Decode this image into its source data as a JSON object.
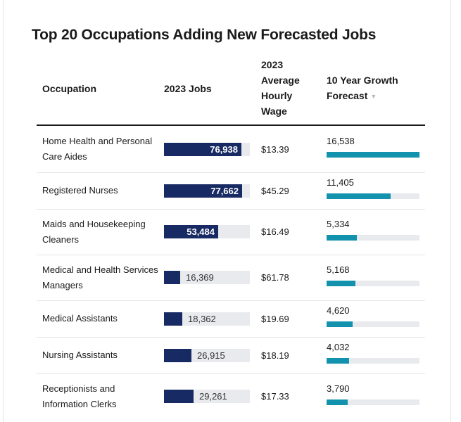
{
  "chart_data": {
    "type": "table",
    "title": "Top 20 Occupations Adding New Forecasted Jobs",
    "columns": {
      "occupation": "Occupation",
      "jobs": "2023 Jobs",
      "wage": "2023 Average Hourly Wage",
      "growth": "10 Year Growth Forecast"
    },
    "sort": {
      "column": "growth",
      "direction": "descending",
      "icon": "sort-down-icon"
    },
    "jobs_bar_max": 85000,
    "growth_bar_max": 16538,
    "colors": {
      "jobs_bar": "#182a63",
      "growth_bar": "#1392ad",
      "track": "#e9eaed"
    },
    "rows": [
      {
        "occupation": "Home Health and Personal Care Aides",
        "jobs": 76938,
        "jobs_label": "76,938",
        "wage": "$13.39",
        "growth": 16538,
        "growth_label": "16,538"
      },
      {
        "occupation": "Registered Nurses",
        "jobs": 77662,
        "jobs_label": "77,662",
        "wage": "$45.29",
        "growth": 11405,
        "growth_label": "11,405"
      },
      {
        "occupation": "Maids and Housekeeping Cleaners",
        "jobs": 53484,
        "jobs_label": "53,484",
        "wage": "$16.49",
        "growth": 5334,
        "growth_label": "5,334"
      },
      {
        "occupation": "Medical and Health Services Managers",
        "jobs": 16369,
        "jobs_label": "16,369",
        "wage": "$61.78",
        "growth": 5168,
        "growth_label": "5,168"
      },
      {
        "occupation": "Medical Assistants",
        "jobs": 18362,
        "jobs_label": "18,362",
        "wage": "$19.69",
        "growth": 4620,
        "growth_label": "4,620"
      },
      {
        "occupation": "Nursing Assistants",
        "jobs": 26915,
        "jobs_label": "26,915",
        "wage": "$18.19",
        "growth": 4032,
        "growth_label": "4,032"
      },
      {
        "occupation": "Receptionists and Information Clerks",
        "jobs": 29261,
        "jobs_label": "29,261",
        "wage": "$17.33",
        "growth": 3790,
        "growth_label": "3,790"
      }
    ]
  }
}
